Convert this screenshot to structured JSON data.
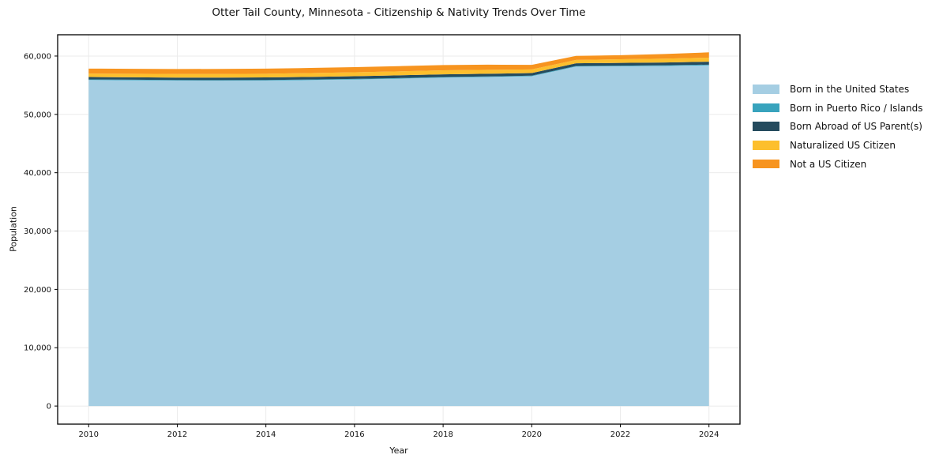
{
  "page": {
    "background": "#ffffff"
  },
  "chart_data": {
    "type": "area",
    "stacked": true,
    "title": "Otter Tail County, Minnesota - Citizenship & Nativity Trends Over Time",
    "xlabel": "Year",
    "ylabel": "Population",
    "x": [
      2010,
      2011,
      2012,
      2013,
      2014,
      2015,
      2016,
      2017,
      2018,
      2019,
      2020,
      2021,
      2022,
      2023,
      2024
    ],
    "series": [
      {
        "name": "Born in the United States",
        "color": "#a5cee3",
        "values": [
          55900,
          55850,
          55800,
          55780,
          55800,
          55880,
          55980,
          56120,
          56300,
          56400,
          56550,
          58200,
          58250,
          58300,
          58400
        ]
      },
      {
        "name": "Born in Puerto Rico / Islands",
        "color": "#38a3bd",
        "values": [
          100,
          100,
          100,
          100,
          100,
          100,
          100,
          100,
          100,
          100,
          100,
          100,
          110,
          120,
          130
        ]
      },
      {
        "name": "Born Abroad of US Parent(s)",
        "color": "#254b5e",
        "values": [
          400,
          400,
          410,
          420,
          430,
          450,
          470,
          480,
          470,
          460,
          440,
          460,
          470,
          480,
          500
        ]
      },
      {
        "name": "Naturalized US Citizen",
        "color": "#fdbf2d",
        "values": [
          600,
          610,
          620,
          630,
          640,
          650,
          660,
          670,
          680,
          680,
          620,
          580,
          620,
          650,
          700
        ]
      },
      {
        "name": "Not a US Citizen",
        "color": "#f7941f",
        "values": [
          850,
          850,
          850,
          860,
          870,
          880,
          890,
          900,
          910,
          880,
          780,
          680,
          700,
          800,
          900
        ]
      }
    ],
    "xticks": [
      2010,
      2012,
      2014,
      2016,
      2018,
      2020,
      2022,
      2024
    ],
    "xtick_labels": [
      "2010",
      "2012",
      "2014",
      "2016",
      "2018",
      "2020",
      "2022",
      "2024"
    ],
    "yticks": [
      0,
      10000,
      20000,
      30000,
      40000,
      50000,
      60000
    ],
    "ytick_labels": [
      "0",
      "10,000",
      "20,000",
      "30,000",
      "40,000",
      "50,000",
      "60,000"
    ],
    "xlim": [
      2009.3,
      2024.7
    ],
    "ylim": [
      -3100,
      63650
    ],
    "grid": true,
    "grid_color": "#ebebeb",
    "legend_position": "right-outside",
    "legend_frame": false
  }
}
